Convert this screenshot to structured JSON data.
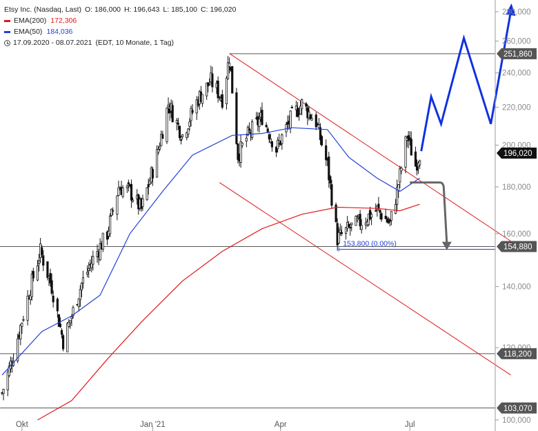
{
  "legend": {
    "header_name": "Etsy Inc. (Nasdaq, Last)",
    "open": "O: 186,000",
    "high": "H: 196,643",
    "low": "L: 185,100",
    "close": "C: 196,020",
    "ema200_label": "EMA(200)",
    "ema200_value": "172,306",
    "ema50_label": "EMA(50)",
    "ema50_value": "184,036",
    "range": "17.09.2020 - 08.07.2021",
    "period": "(EDT, 10 Monate, 1 Tag)"
  },
  "chart_data": {
    "type": "candlestick",
    "y_scale": "log",
    "ylim": [
      100,
      285
    ],
    "y_ticks": [
      100,
      120,
      140,
      160,
      180,
      200,
      220,
      240,
      260,
      280
    ],
    "y_tick_labels": [
      "100,000",
      "120,000",
      "140,000",
      "160,000",
      "180,000",
      "200,000",
      "220,000",
      "240,000",
      "260,000",
      "280,000"
    ],
    "x_range": [
      "2020-09-17",
      "2021-07-08"
    ],
    "x_ticks": [
      {
        "date": "2020-10-01",
        "label": "Okt"
      },
      {
        "date": "2021-01-01",
        "label": "Jan '21"
      },
      {
        "date": "2021-04-01",
        "label": "Apr"
      },
      {
        "date": "2021-07-01",
        "label": "Jul"
      }
    ],
    "price_anchors": [
      {
        "date": "2020-09-17",
        "close": 107
      },
      {
        "date": "2020-09-25",
        "close": 118
      },
      {
        "date": "2020-10-06",
        "close": 138
      },
      {
        "date": "2020-10-14",
        "close": 153
      },
      {
        "date": "2020-10-22",
        "close": 140
      },
      {
        "date": "2020-10-30",
        "close": 122
      },
      {
        "date": "2020-11-05",
        "close": 130
      },
      {
        "date": "2020-11-12",
        "close": 141
      },
      {
        "date": "2020-11-20",
        "close": 150
      },
      {
        "date": "2020-11-30",
        "close": 160
      },
      {
        "date": "2020-12-08",
        "close": 180
      },
      {
        "date": "2020-12-16",
        "close": 178
      },
      {
        "date": "2020-12-24",
        "close": 170
      },
      {
        "date": "2021-01-04",
        "close": 195
      },
      {
        "date": "2021-01-12",
        "close": 222
      },
      {
        "date": "2021-01-22",
        "close": 205
      },
      {
        "date": "2021-02-02",
        "close": 225
      },
      {
        "date": "2021-02-11",
        "close": 235
      },
      {
        "date": "2021-02-19",
        "close": 225
      },
      {
        "date": "2021-02-24",
        "close": 250
      },
      {
        "date": "2021-03-02",
        "close": 195
      },
      {
        "date": "2021-03-09",
        "close": 205
      },
      {
        "date": "2021-03-19",
        "close": 215
      },
      {
        "date": "2021-03-29",
        "close": 198
      },
      {
        "date": "2021-04-09",
        "close": 215
      },
      {
        "date": "2021-04-16",
        "close": 222
      },
      {
        "date": "2021-04-26",
        "close": 212
      },
      {
        "date": "2021-05-04",
        "close": 190
      },
      {
        "date": "2021-05-11",
        "close": 158
      },
      {
        "date": "2021-05-19",
        "close": 162
      },
      {
        "date": "2021-05-28",
        "close": 165
      },
      {
        "date": "2021-06-08",
        "close": 170
      },
      {
        "date": "2021-06-17",
        "close": 164
      },
      {
        "date": "2021-06-22",
        "close": 178
      },
      {
        "date": "2021-06-29",
        "close": 205
      },
      {
        "date": "2021-07-05",
        "close": 190
      },
      {
        "date": "2021-07-08",
        "close": 196.02
      }
    ],
    "ema50": [
      {
        "date": "2020-09-17",
        "value": 112
      },
      {
        "date": "2020-10-15",
        "value": 125
      },
      {
        "date": "2020-11-05",
        "value": 130
      },
      {
        "date": "2020-11-25",
        "value": 137
      },
      {
        "date": "2020-12-16",
        "value": 160
      },
      {
        "date": "2021-01-08",
        "value": 178
      },
      {
        "date": "2021-01-29",
        "value": 195
      },
      {
        "date": "2021-02-26",
        "value": 205
      },
      {
        "date": "2021-03-19",
        "value": 206
      },
      {
        "date": "2021-04-09",
        "value": 209
      },
      {
        "date": "2021-05-04",
        "value": 208
      },
      {
        "date": "2021-05-19",
        "value": 194
      },
      {
        "date": "2021-06-08",
        "value": 184
      },
      {
        "date": "2021-06-24",
        "value": 178
      },
      {
        "date": "2021-07-08",
        "value": 184.036
      }
    ],
    "ema200": [
      {
        "date": "2020-10-12",
        "value": 100
      },
      {
        "date": "2020-11-05",
        "value": 105
      },
      {
        "date": "2020-12-01",
        "value": 117
      },
      {
        "date": "2020-12-24",
        "value": 128
      },
      {
        "date": "2021-01-22",
        "value": 142
      },
      {
        "date": "2021-02-19",
        "value": 153
      },
      {
        "date": "2021-03-19",
        "value": 162
      },
      {
        "date": "2021-04-16",
        "value": 168
      },
      {
        "date": "2021-05-11",
        "value": 171
      },
      {
        "date": "2021-06-08",
        "value": 170.5
      },
      {
        "date": "2021-06-24",
        "value": 169.5
      },
      {
        "date": "2021-07-08",
        "value": 172.306
      }
    ],
    "horizontal_levels": [
      {
        "value": 251.86,
        "label": "251,860",
        "style": "dark"
      },
      {
        "value": 154.88,
        "label": "154,880",
        "style": "dark"
      },
      {
        "value": 118.2,
        "label": "118,200",
        "style": "dark"
      },
      {
        "value": 103.07,
        "label": "103,070",
        "style": "dark"
      },
      {
        "value": 196.02,
        "label": "196,020",
        "style": "current"
      }
    ],
    "trend_channel": [
      {
        "from": {
          "date": "2021-02-24",
          "value": 252
        },
        "to": {
          "date": "2021-09-10",
          "value": 157
        }
      },
      {
        "from": {
          "date": "2021-02-17",
          "value": 182
        },
        "to": {
          "date": "2021-09-10",
          "value": 112
        }
      }
    ],
    "low_marker": {
      "date": "2021-05-12",
      "value": 153.8,
      "text": "153,800 (0.00%)"
    },
    "projection_up": [
      {
        "date": "2021-07-09",
        "value": 197
      },
      {
        "date": "2021-07-16",
        "value": 226
      },
      {
        "date": "2021-07-23",
        "value": 211
      },
      {
        "date": "2021-08-08",
        "value": 262
      },
      {
        "date": "2021-08-27",
        "value": 211
      },
      {
        "date": "2021-09-10",
        "value": 280
      }
    ],
    "projection_down": [
      {
        "date": "2021-07-01",
        "value": 182
      },
      {
        "date": "2021-07-22",
        "value": 182
      },
      {
        "date": "2021-07-27",
        "value": 153.5
      }
    ],
    "colors": {
      "candle": "#111111",
      "ema50": "#1f3fd8",
      "ema200": "#e01818",
      "channel": "#e01818",
      "projection_up": "#1030e0",
      "projection_down": "#666666",
      "level_line": "#555555",
      "label_dark": "#555555",
      "label_current": "#111111",
      "low_marker_text": "#1f3fd8",
      "axis_text": "#8a8a8a"
    }
  }
}
